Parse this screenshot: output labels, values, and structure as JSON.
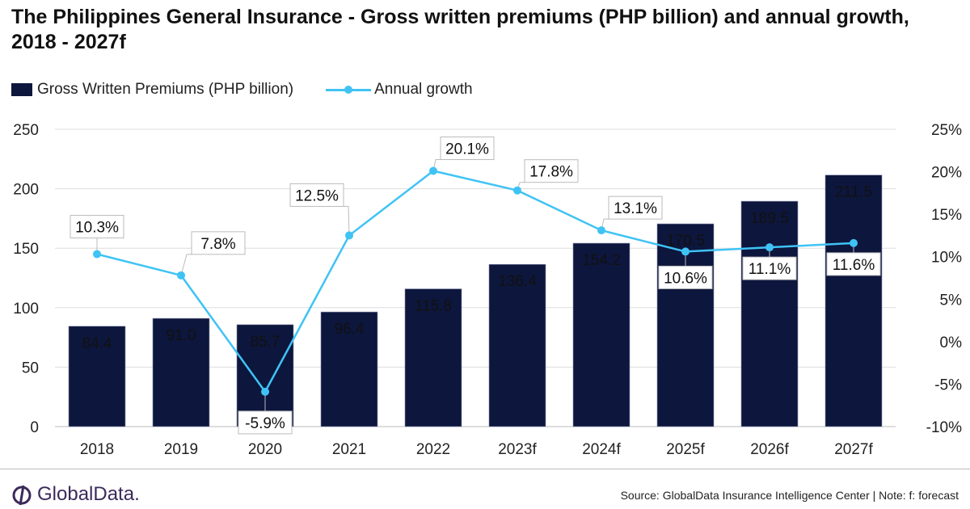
{
  "chart_data": {
    "type": "bar+line",
    "title": "The Philippines General Insurance - Gross written premiums (PHP billion) and annual growth, 2018 - 2027f",
    "categories": [
      "2018",
      "2019",
      "2020",
      "2021",
      "2022",
      "2023f",
      "2024f",
      "2025f",
      "2026f",
      "2027f"
    ],
    "series": [
      {
        "name": "Gross Written Premiums (PHP billion)",
        "type": "bar",
        "axis": "left",
        "color": "#0d163d",
        "values": [
          84.4,
          91.0,
          85.7,
          96.4,
          115.8,
          136.4,
          154.2,
          170.5,
          189.5,
          211.5
        ],
        "labels": [
          "84.4",
          "91.0",
          "85.7",
          "96.4",
          "115.8",
          "136.4",
          "154.2",
          "170.5",
          "189.5",
          "211.5"
        ]
      },
      {
        "name": "Annual growth",
        "type": "line",
        "axis": "right",
        "color": "#3fc3f5",
        "values": [
          10.3,
          7.8,
          -5.9,
          12.5,
          20.1,
          17.8,
          13.1,
          10.6,
          11.1,
          11.6
        ],
        "labels": [
          "10.3%",
          "7.8%",
          "-5.9%",
          "12.5%",
          "20.1%",
          "17.8%",
          "13.1%",
          "10.6%",
          "11.1%",
          "11.6%"
        ]
      }
    ],
    "y_left": {
      "range": [
        0,
        250
      ],
      "ticks": [
        "0",
        "50",
        "100",
        "150",
        "200",
        "250"
      ]
    },
    "y_right": {
      "range": [
        -10,
        25
      ],
      "ticks": [
        "-10%",
        "-5%",
        "0%",
        "5%",
        "10%",
        "15%",
        "20%",
        "25%"
      ]
    },
    "grid": true,
    "legend": "top-left"
  },
  "logo": "GlobalData.",
  "source": "Source: GlobalData Insurance Intelligence Center | Note: f: forecast"
}
